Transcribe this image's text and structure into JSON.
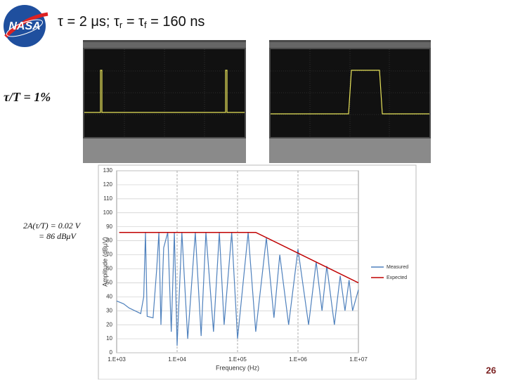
{
  "header": {
    "title_parts": [
      "τ = 2 μs; τ",
      "r",
      " = τ",
      "f",
      "  = 160 ns"
    ],
    "logo_text": "NASA"
  },
  "annotations": {
    "duty": "τ/T = 1%",
    "amp_line1": "2A(τ/T) = 0.02 V",
    "amp_line2": "= 86 dBμV"
  },
  "page_number": "26",
  "chart_data": {
    "type": "line",
    "x_label": "Frequency (Hz)",
    "y_label": "Amplitude (dBμV)",
    "log_x": true,
    "grid": true,
    "xlim": [
      1000,
      10000000
    ],
    "xticks": [
      {
        "value": 1000,
        "label": "1.E+03"
      },
      {
        "value": 10000,
        "label": "1.E+04"
      },
      {
        "value": 100000,
        "label": "1.E+05"
      },
      {
        "value": 1000000,
        "label": "1.E+06"
      },
      {
        "value": 10000000,
        "label": "1.E+07"
      }
    ],
    "ylim": [
      0,
      130
    ],
    "yticks": [
      0,
      10,
      20,
      30,
      40,
      50,
      60,
      70,
      80,
      90,
      100,
      110,
      120,
      130
    ],
    "series": [
      {
        "name": "Measured",
        "color": "#4f81bd",
        "x": [
          1000,
          1300,
          1600,
          2000,
          2500,
          2800,
          3000,
          3200,
          4000,
          4600,
          5000,
          5400,
          6000,
          7000,
          8000,
          9000,
          10000,
          12000,
          15000,
          20000,
          25000,
          30000,
          40000,
          50000,
          60000,
          80000,
          100000,
          150000,
          200000,
          300000,
          400000,
          500000,
          700000,
          1000000,
          1500000,
          2000000,
          2500000,
          3000000,
          4000000,
          5000000,
          6000000,
          7000000,
          8000000,
          10000000
        ],
        "values": [
          37,
          35,
          32,
          30,
          28,
          40,
          86,
          26,
          25,
          60,
          86,
          20,
          75,
          86,
          15,
          86,
          5,
          86,
          10,
          86,
          12,
          86,
          15,
          86,
          20,
          86,
          10,
          86,
          15,
          82,
          25,
          70,
          20,
          74,
          20,
          65,
          30,
          62,
          20,
          55,
          30,
          52,
          30,
          45
        ]
      },
      {
        "name": "Expected",
        "color": "#c00000",
        "x": [
          1100,
          200000,
          10000000
        ],
        "values": [
          86,
          86,
          50
        ]
      }
    ]
  }
}
